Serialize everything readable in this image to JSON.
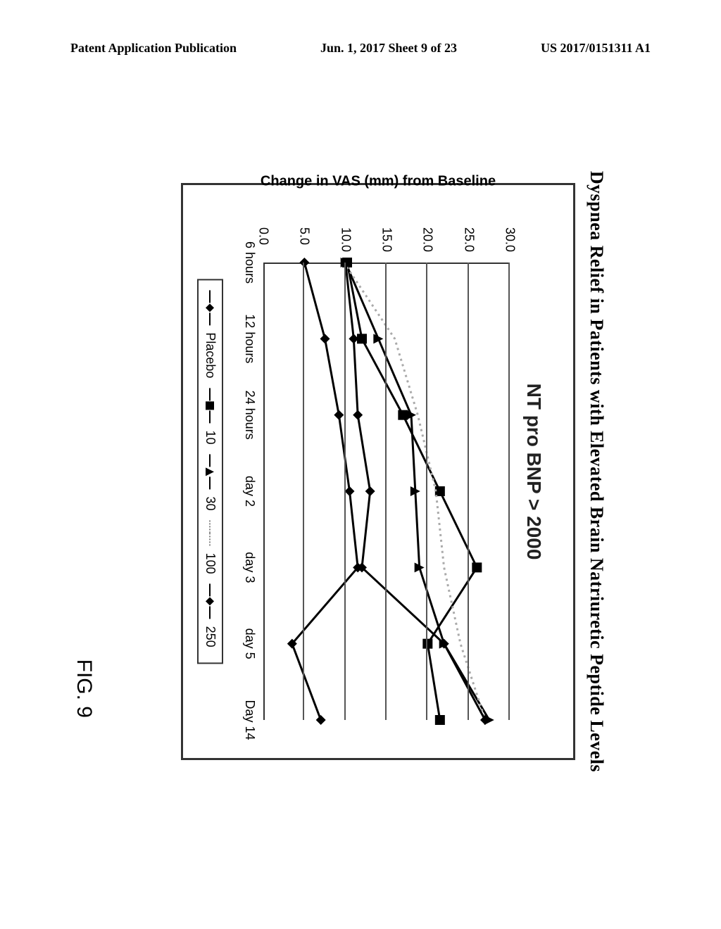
{
  "header": {
    "left": "Patent Application Publication",
    "center": "Jun. 1, 2017  Sheet 9 of 23",
    "right": "US 2017/0151311 A1"
  },
  "figure_label": "FIG. 9",
  "chart": {
    "type": "line",
    "title": "Dyspnea Relief in Patients with Elevated Brain Natriuretic Peptide Levels",
    "subtitle": "NT pro BNP > 2000",
    "ylabel": "Change in VAS (mm) from Baseline",
    "ylim": [
      0,
      30
    ],
    "ytick_step": 5,
    "yticks": [
      "0.0",
      "5.0",
      "10.0",
      "15.0",
      "20.0",
      "25.0",
      "30.0"
    ],
    "xticks": [
      "6 hours",
      "12 hours",
      "24 hours",
      "day 2",
      "day 3",
      "day 5",
      "Day 14"
    ],
    "grid_color": "#555555",
    "background_color": "#ffffff",
    "border_color": "#333333",
    "line_width": 3,
    "marker_size": 8,
    "series": [
      {
        "label": "Placebo",
        "marker": "diamond",
        "color": "#000000",
        "line_style": "solid",
        "values": [
          5.0,
          7.5,
          9.2,
          10.5,
          11.5,
          3.5,
          7.0
        ]
      },
      {
        "label": "10",
        "marker": "square",
        "color": "#000000",
        "line_style": "solid",
        "values": [
          10.2,
          12.0,
          17.0,
          21.5,
          26.0,
          20.0,
          21.5
        ]
      },
      {
        "label": "30",
        "marker": "triangle",
        "color": "#000000",
        "line_style": "solid",
        "values": [
          10.0,
          14.0,
          18.0,
          18.5,
          19.0,
          22.0,
          27.5
        ]
      },
      {
        "label": "100",
        "marker": "none",
        "color": "#aaaaaa",
        "line_style": "dotted",
        "values": [
          9.8,
          16.0,
          18.8,
          21.0,
          22.0,
          24.0,
          27.0
        ]
      },
      {
        "label": "250",
        "marker": "diamond",
        "color": "#000000",
        "line_style": "solid",
        "values": [
          10.0,
          11.0,
          11.5,
          13.0,
          12.0,
          22.0,
          27.0
        ]
      }
    ]
  }
}
